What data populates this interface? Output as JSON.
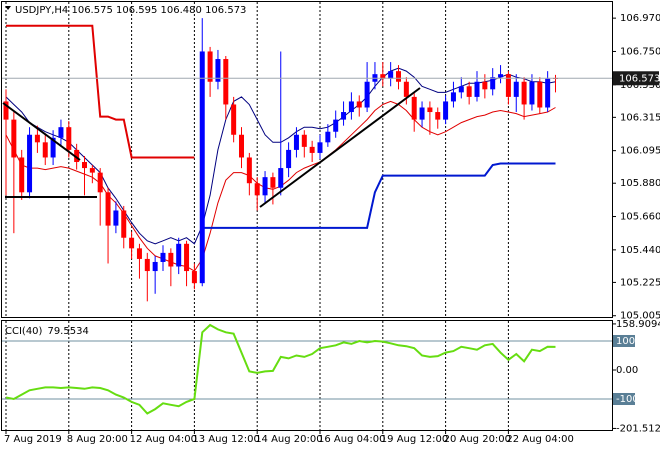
{
  "chart_data": {
    "type": "candlestick",
    "title": "USDJPY,H4  106.575 106.595 106.480 106.573",
    "categories": [
      "7 Aug 2019",
      null,
      null,
      null,
      null,
      null,
      null,
      null,
      "8 Aug 20:00",
      null,
      null,
      null,
      null,
      null,
      null,
      null,
      "12 Aug 04:00",
      null,
      null,
      null,
      null,
      null,
      null,
      null,
      "13 Aug 12:00",
      null,
      null,
      null,
      null,
      null,
      null,
      null,
      "14 Aug 20:00",
      null,
      null,
      null,
      null,
      null,
      null,
      null,
      "16 Aug 04:00",
      null,
      null,
      null,
      null,
      null,
      null,
      null,
      "19 Aug 12:00",
      null,
      null,
      null,
      null,
      null,
      null,
      null,
      "20 Aug 20:00",
      null,
      null,
      null,
      null,
      null,
      null,
      null,
      "22 Aug 04:00",
      null,
      null,
      null,
      null,
      null,
      null
    ],
    "open": [
      106.42,
      106.3,
      106.05,
      105.82,
      106.2,
      106.15,
      106.05,
      106.18,
      106.25,
      106.1,
      106.02,
      105.98,
      105.95,
      105.82,
      105.6,
      105.7,
      105.52,
      105.45,
      105.38,
      105.3,
      105.36,
      105.42,
      105.33,
      105.48,
      105.3,
      105.22,
      106.75,
      106.55,
      106.7,
      106.4,
      106.2,
      106.05,
      105.88,
      105.8,
      105.92,
      105.85,
      105.98,
      106.1,
      106.2,
      106.12,
      106.08,
      106.15,
      106.22,
      106.3,
      106.35,
      106.42,
      106.38,
      106.55,
      106.6,
      106.57,
      106.62,
      106.55,
      106.45,
      106.3,
      106.38,
      106.35,
      106.3,
      106.42,
      106.48,
      106.52,
      106.45,
      106.55,
      106.5,
      106.58,
      106.6,
      106.45,
      106.55,
      106.4,
      106.55,
      106.38,
      106.575
    ],
    "high": [
      106.5,
      106.35,
      106.1,
      106.25,
      106.26,
      106.2,
      106.23,
      106.3,
      106.29,
      106.14,
      106.06,
      106.0,
      105.98,
      105.85,
      105.76,
      105.73,
      105.56,
      105.48,
      105.42,
      105.4,
      105.47,
      105.45,
      105.52,
      105.5,
      105.35,
      106.97,
      106.78,
      106.76,
      106.72,
      106.45,
      106.25,
      106.08,
      105.92,
      105.96,
      105.95,
      106.75,
      106.15,
      106.25,
      106.23,
      106.16,
      106.2,
      106.27,
      106.36,
      106.42,
      106.48,
      106.46,
      106.68,
      106.68,
      106.68,
      106.68,
      106.66,
      106.58,
      106.48,
      106.42,
      106.42,
      106.38,
      106.46,
      106.55,
      106.58,
      106.55,
      106.62,
      106.6,
      106.64,
      106.66,
      106.62,
      106.6,
      106.58,
      106.6,
      106.58,
      106.62,
      106.595
    ],
    "low": [
      105.8,
      105.55,
      105.77,
      105.78,
      106.08,
      106.0,
      106.0,
      106.12,
      106.05,
      105.97,
      105.8,
      105.88,
      105.6,
      105.35,
      105.55,
      105.45,
      105.38,
      105.25,
      105.1,
      105.15,
      105.3,
      105.2,
      105.28,
      105.2,
      105.18,
      105.2,
      106.45,
      106.5,
      106.3,
      106.15,
      105.98,
      105.8,
      105.7,
      105.75,
      105.74,
      105.8,
      105.92,
      106.05,
      106.05,
      106.02,
      106.04,
      106.12,
      106.18,
      106.26,
      106.3,
      106.32,
      106.35,
      106.5,
      106.52,
      106.52,
      106.5,
      106.4,
      106.22,
      106.25,
      106.2,
      106.24,
      106.27,
      106.38,
      106.44,
      106.4,
      106.42,
      106.44,
      106.46,
      106.54,
      106.4,
      106.35,
      106.3,
      106.36,
      106.34,
      106.35,
      106.48
    ],
    "close": [
      106.3,
      106.05,
      105.82,
      106.2,
      106.15,
      106.05,
      106.18,
      106.25,
      106.1,
      106.02,
      105.98,
      105.95,
      105.82,
      105.6,
      105.7,
      105.52,
      105.45,
      105.38,
      105.3,
      105.36,
      105.42,
      105.33,
      105.48,
      105.3,
      105.22,
      106.75,
      106.55,
      106.7,
      106.4,
      106.2,
      106.05,
      105.88,
      105.8,
      105.92,
      105.85,
      105.98,
      106.1,
      106.2,
      106.12,
      106.08,
      106.15,
      106.22,
      106.3,
      106.35,
      106.42,
      106.38,
      106.55,
      106.6,
      106.57,
      106.62,
      106.55,
      106.45,
      106.3,
      106.38,
      106.35,
      106.3,
      106.42,
      106.48,
      106.52,
      106.45,
      106.55,
      106.5,
      106.58,
      106.6,
      106.45,
      106.55,
      106.4,
      106.55,
      106.38,
      106.57,
      106.573
    ],
    "up_color": "#0000ff",
    "down_color": "#ff0000",
    "ylim": [
      104.99,
      107.07
    ],
    "yticks": [
      {
        "value": 106.97,
        "label": "106.970"
      },
      {
        "value": 106.75,
        "label": "106.750"
      },
      {
        "value": 106.53,
        "label": "106.530"
      },
      106.315,
      106.095,
      {
        "value": 105.88,
        "label": "105.880"
      },
      {
        "value": 105.66,
        "label": "105.660"
      },
      {
        "value": 105.44,
        "label": "105.440"
      },
      105.225,
      105.005
    ],
    "grid": true,
    "series": [
      {
        "color": "#000080",
        "values": [
          106.45,
          106.4,
          106.35,
          106.28,
          106.25,
          106.22,
          106.2,
          106.18,
          106.15,
          106.1,
          106.05,
          106.0,
          105.95,
          105.85,
          105.78,
          105.7,
          105.62,
          105.55,
          105.5,
          105.48,
          105.5,
          105.52,
          105.5,
          105.52,
          105.48,
          105.6,
          105.8,
          106.1,
          106.3,
          106.42,
          106.45,
          106.4,
          106.3,
          106.2,
          106.15,
          106.15,
          106.18,
          106.22,
          106.25,
          106.25,
          106.24,
          106.25,
          106.28,
          106.32,
          106.36,
          106.4,
          106.45,
          106.52,
          106.58,
          106.62,
          106.64,
          106.62,
          106.58,
          106.52,
          106.5,
          106.48,
          106.48,
          106.5,
          106.52,
          106.54,
          106.54,
          106.55,
          106.56,
          106.58,
          106.6,
          106.58,
          106.57,
          106.55,
          106.55,
          106.54,
          106.55
        ]
      },
      {
        "color": "#e00000",
        "values": [
          106.2,
          106.1,
          106.0,
          105.98,
          105.98,
          105.97,
          105.98,
          105.99,
          105.98,
          105.96,
          105.94,
          105.92,
          105.88,
          105.8,
          105.75,
          105.68,
          105.6,
          105.52,
          105.45,
          105.4,
          105.38,
          105.36,
          105.34,
          105.33,
          105.3,
          105.38,
          105.55,
          105.75,
          105.9,
          105.95,
          105.95,
          105.93,
          105.88,
          105.85,
          105.84,
          105.86,
          105.9,
          105.95,
          105.98,
          106.0,
          106.02,
          106.06,
          106.1,
          106.15,
          106.2,
          106.25,
          106.3,
          106.36,
          106.4,
          106.42,
          106.4,
          106.36,
          106.3,
          106.25,
          106.22,
          106.2,
          106.22,
          106.25,
          106.28,
          106.3,
          106.32,
          106.33,
          106.35,
          106.36,
          106.35,
          106.34,
          106.32,
          106.33,
          106.34,
          106.35,
          106.38
        ]
      },
      {
        "color": "#e00000",
        "values": [
          106.92,
          106.92,
          106.92,
          106.92,
          106.92,
          106.92,
          106.92,
          106.92,
          106.92,
          106.92,
          106.92,
          106.92,
          106.32,
          106.32,
          106.3,
          106.3,
          106.05,
          106.05,
          106.05,
          106.05,
          106.05,
          106.05,
          106.05,
          106.05,
          106.05,
          null,
          null,
          null,
          null,
          null,
          null,
          null,
          null,
          null,
          null,
          null,
          null,
          null,
          null,
          null,
          null,
          null,
          null,
          null,
          null,
          null,
          null,
          null,
          null,
          null,
          null,
          null,
          null,
          null,
          null,
          null,
          null,
          null,
          null,
          null,
          null,
          null,
          null,
          null,
          null,
          null,
          null,
          null,
          null,
          null,
          null
        ]
      },
      {
        "color": "#0018d0",
        "values": [
          null,
          null,
          null,
          null,
          null,
          null,
          null,
          null,
          null,
          null,
          null,
          null,
          null,
          null,
          null,
          null,
          null,
          null,
          null,
          null,
          null,
          null,
          null,
          null,
          null,
          105.585,
          105.585,
          105.585,
          105.585,
          105.585,
          105.585,
          105.585,
          105.585,
          105.585,
          105.585,
          105.585,
          105.585,
          105.585,
          105.585,
          105.585,
          105.585,
          105.585,
          105.585,
          105.585,
          105.585,
          105.585,
          105.585,
          105.82,
          105.93,
          105.93,
          105.93,
          105.93,
          105.93,
          105.93,
          105.93,
          105.93,
          105.93,
          105.93,
          105.93,
          105.93,
          105.93,
          105.93,
          106.0,
          106.01,
          106.01,
          106.01,
          106.01,
          106.01,
          106.01,
          106.01,
          106.01
        ]
      }
    ],
    "cci": {
      "label": "CCI(40)",
      "color": "#66dd11",
      "values": [
        -95,
        -100,
        -85,
        -70,
        -65,
        -60,
        -60,
        -62,
        -60,
        -62,
        -65,
        -60,
        -62,
        -70,
        -85,
        -95,
        -110,
        -120,
        -150,
        -135,
        -115,
        -120,
        -125,
        -110,
        -100,
        130,
        155,
        140,
        130,
        125,
        60,
        -5,
        -10,
        -5,
        -3,
        45,
        40,
        50,
        45,
        55,
        75,
        80,
        85,
        95,
        90,
        100,
        95,
        100,
        98,
        92,
        85,
        82,
        75,
        50,
        45,
        48,
        60,
        65,
        80,
        75,
        70,
        85,
        90,
        60,
        35,
        55,
        30,
        70,
        65,
        80,
        79.5534
      ],
      "ylim": [
        -206.9,
        165.5
      ],
      "yticks": [
        158.9094,
        100,
        {
          "value": 0,
          "label": "0.00"
        },
        -100,
        -201.5128
      ],
      "levels": [
        100,
        -100
      ]
    }
  }
}
